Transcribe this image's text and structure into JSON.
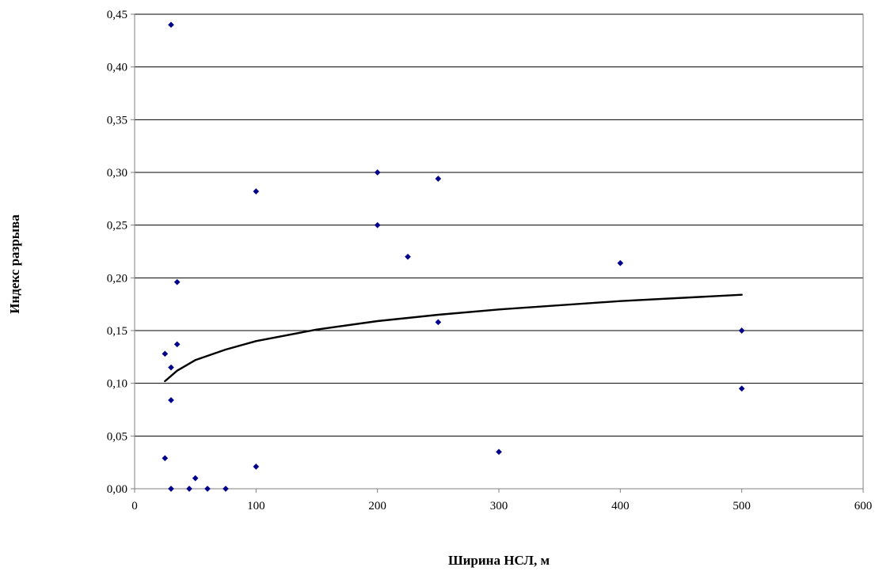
{
  "chart_data": {
    "type": "scatter",
    "title": "",
    "xlabel": "Ширина НСЛ, м",
    "ylabel": "Индекс разрыва",
    "xlim": [
      0,
      600
    ],
    "ylim": [
      0,
      0.45
    ],
    "x_ticks": [
      0,
      100,
      200,
      300,
      400,
      500,
      600
    ],
    "y_ticks": [
      0,
      0.05,
      0.1,
      0.15,
      0.2,
      0.25,
      0.3,
      0.35,
      0.4,
      0.45
    ],
    "x_tick_labels": [
      "0",
      "100",
      "200",
      "300",
      "400",
      "500",
      "600"
    ],
    "y_tick_labels": [
      "0,00",
      "0,05",
      "0,10",
      "0,15",
      "0,20",
      "0,25",
      "0,30",
      "0,35",
      "0,40",
      "0,45"
    ],
    "grid": "horizontal",
    "legend": "none",
    "colors": {
      "points": "#00008B",
      "trendline": "#000000",
      "grid": "#000000",
      "axis": "#808080"
    },
    "series": [
      {
        "kind": "points",
        "points": [
          {
            "x": 30,
            "y": 0.44
          },
          {
            "x": 100,
            "y": 0.282
          },
          {
            "x": 200,
            "y": 0.3
          },
          {
            "x": 250,
            "y": 0.294
          },
          {
            "x": 200,
            "y": 0.25
          },
          {
            "x": 225,
            "y": 0.22
          },
          {
            "x": 400,
            "y": 0.214
          },
          {
            "x": 35,
            "y": 0.196
          },
          {
            "x": 250,
            "y": 0.158
          },
          {
            "x": 500,
            "y": 0.15
          },
          {
            "x": 35,
            "y": 0.137
          },
          {
            "x": 25,
            "y": 0.128
          },
          {
            "x": 30,
            "y": 0.115
          },
          {
            "x": 500,
            "y": 0.095
          },
          {
            "x": 30,
            "y": 0.084
          },
          {
            "x": 300,
            "y": 0.035
          },
          {
            "x": 25,
            "y": 0.029
          },
          {
            "x": 100,
            "y": 0.021
          },
          {
            "x": 50,
            "y": 0.01
          },
          {
            "x": 30,
            "y": 0.0
          },
          {
            "x": 45,
            "y": 0.0
          },
          {
            "x": 60,
            "y": 0.0
          },
          {
            "x": 75,
            "y": 0.0
          }
        ]
      },
      {
        "kind": "trendline",
        "fit": "logarithmic",
        "points": [
          {
            "x": 25,
            "y": 0.102
          },
          {
            "x": 35,
            "y": 0.112
          },
          {
            "x": 50,
            "y": 0.122
          },
          {
            "x": 75,
            "y": 0.132
          },
          {
            "x": 100,
            "y": 0.14
          },
          {
            "x": 150,
            "y": 0.151
          },
          {
            "x": 200,
            "y": 0.159
          },
          {
            "x": 250,
            "y": 0.165
          },
          {
            "x": 300,
            "y": 0.17
          },
          {
            "x": 400,
            "y": 0.178
          },
          {
            "x": 500,
            "y": 0.184
          }
        ]
      }
    ]
  }
}
